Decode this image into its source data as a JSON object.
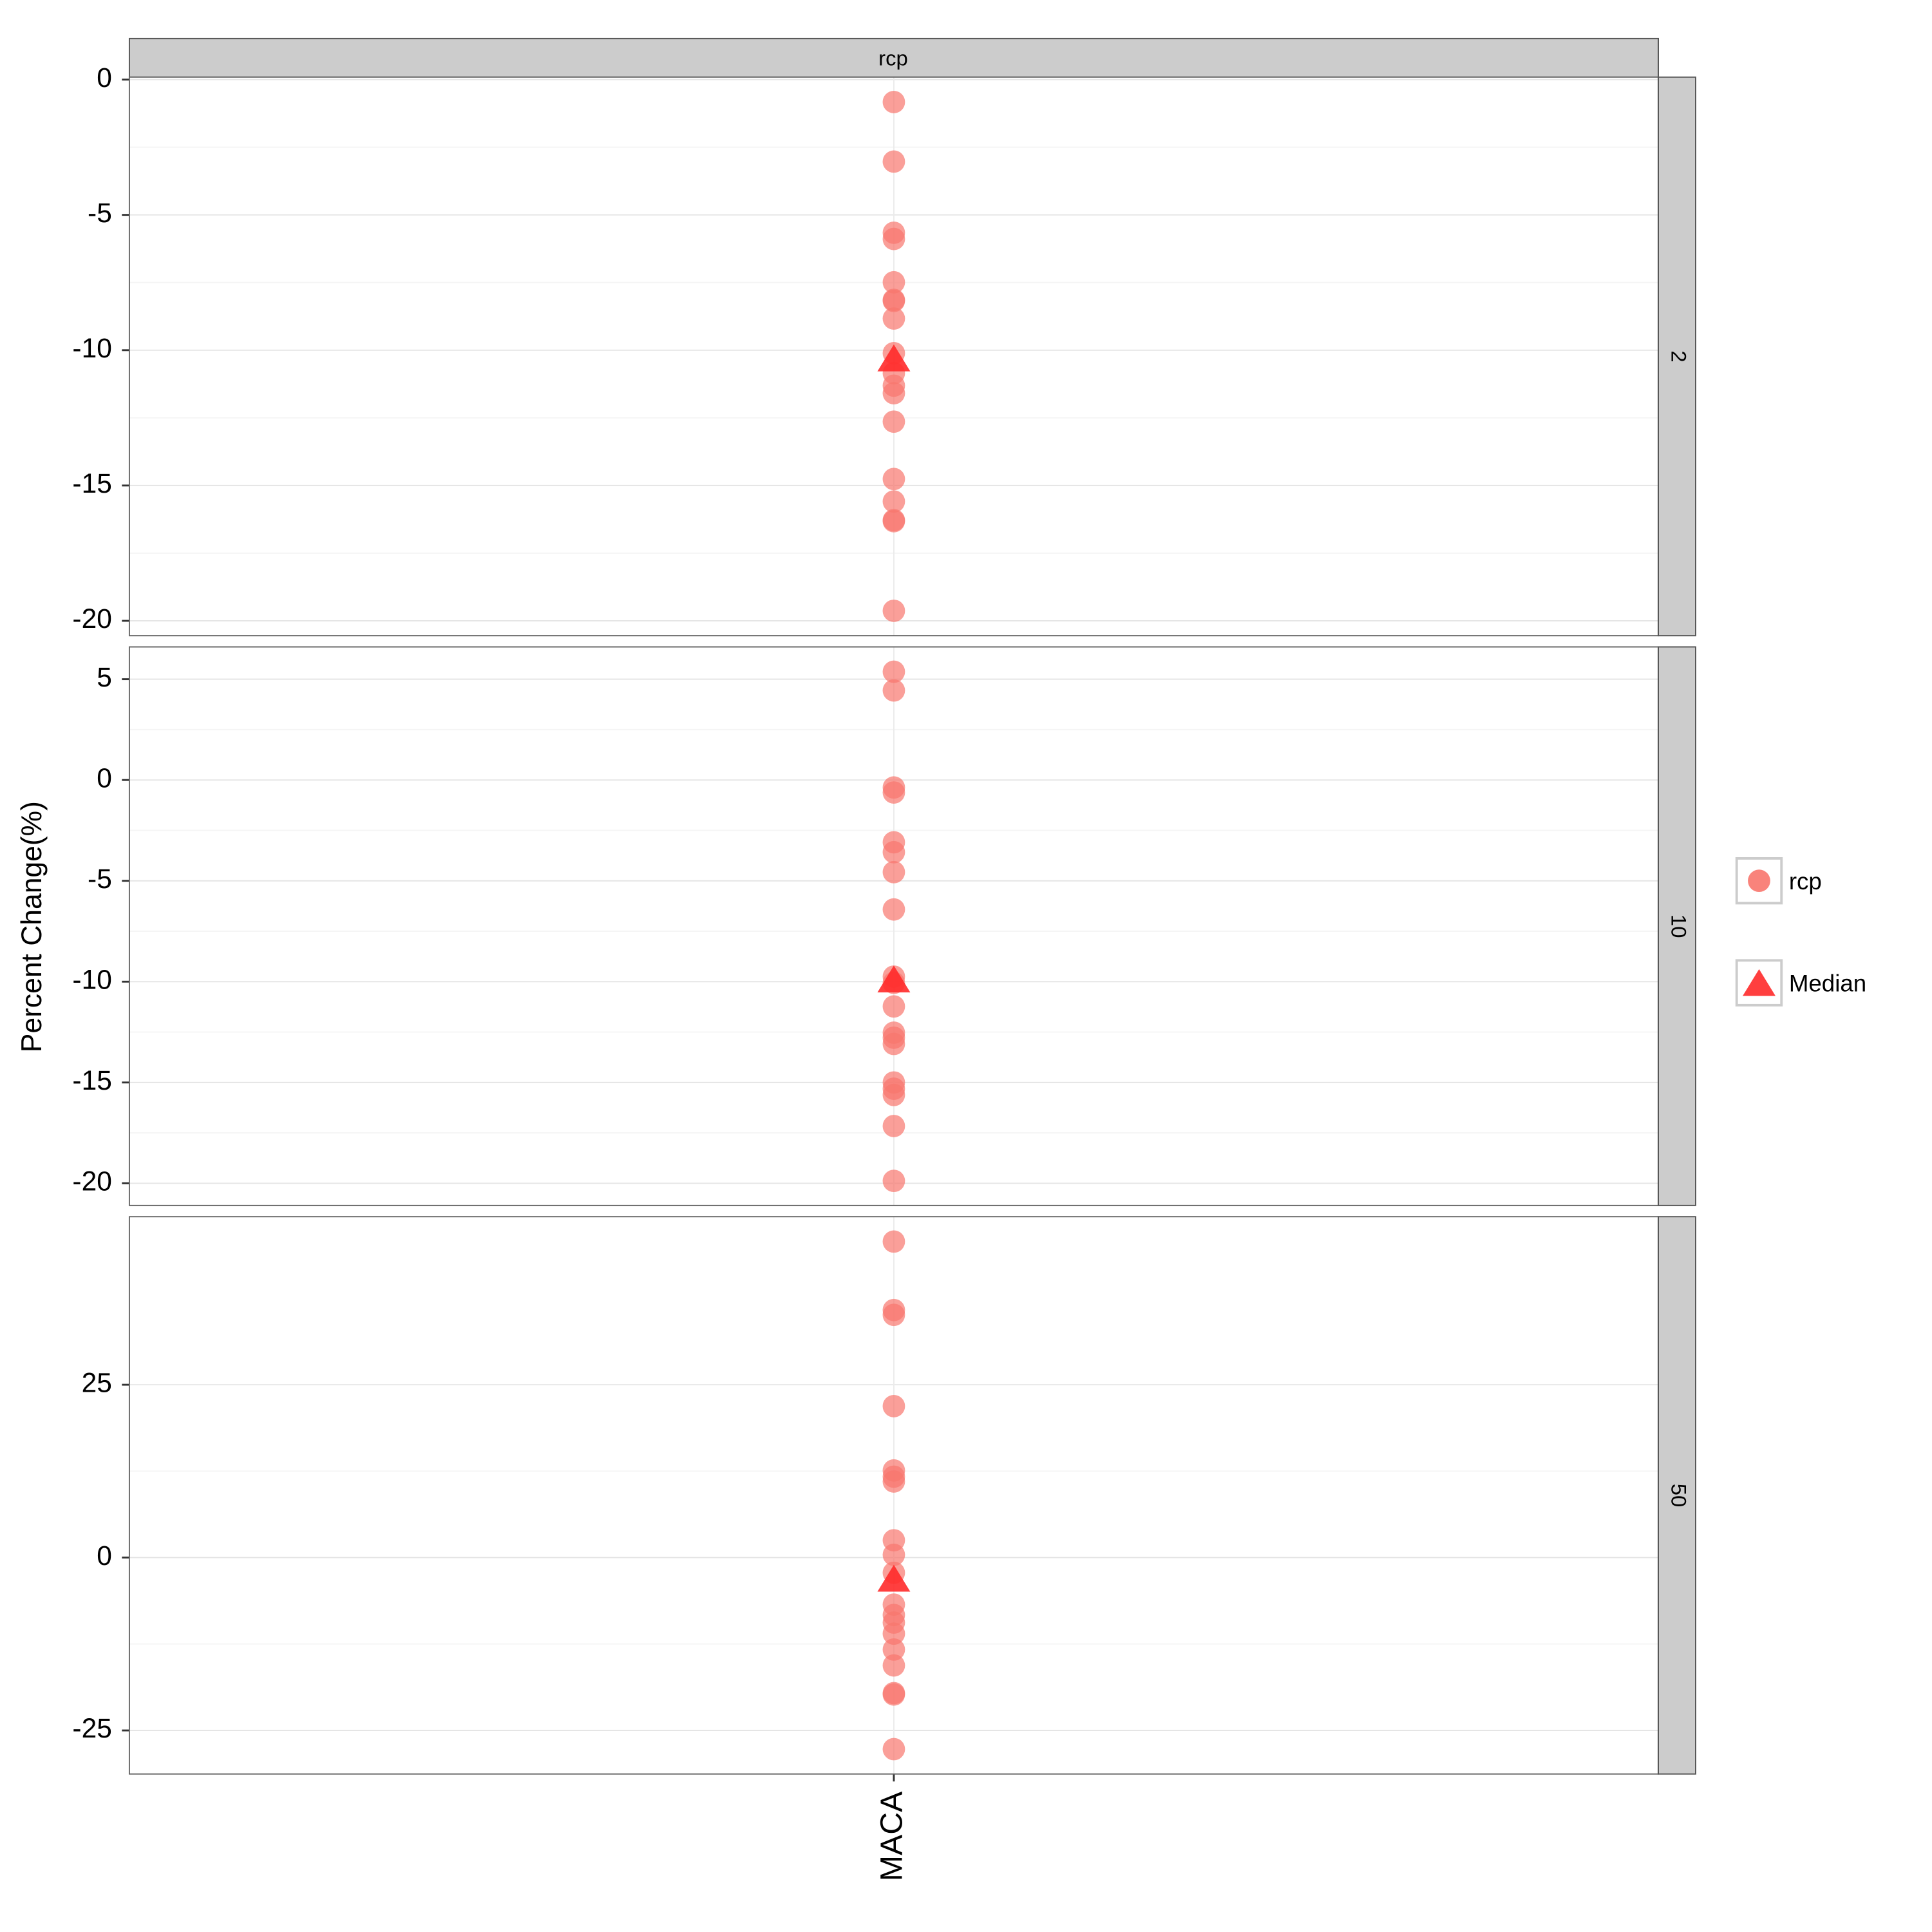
{
  "figure": {
    "strip_label": "rcp",
    "y_label": "Percent Change(%)"
  },
  "chart_data": [
    {
      "type": "scatter",
      "facet_label": "2",
      "categories": [
        "MACA"
      ],
      "series": [
        {
          "name": "rcp",
          "color": "#f8766d",
          "values": [
            -0.83,
            -3.03,
            -5.66,
            -5.89,
            -7.49,
            -8.14,
            -8.18,
            -8.83,
            -10.11,
            -10.85,
            -11.31,
            -11.59,
            -12.64,
            -14.76,
            -15.59,
            -16.28,
            -16.32,
            -19.63
          ]
        },
        {
          "name": "Median",
          "color": "#ff2a2a",
          "values": [
            -10.34
          ]
        }
      ],
      "ylim": [
        -20.55,
        0.09
      ],
      "yticks": [
        -20,
        -15,
        -10,
        -5,
        0
      ],
      "grid": true
    },
    {
      "type": "scatter",
      "facet_label": "10",
      "categories": [
        "MACA"
      ],
      "series": [
        {
          "name": "rcp",
          "color": "#f8766d",
          "values": [
            5.37,
            4.44,
            -0.37,
            -0.62,
            -3.09,
            -3.58,
            -4.57,
            -6.42,
            -9.75,
            -10.06,
            -11.23,
            -12.53,
            -12.78,
            -13.09,
            -15.0,
            -15.31,
            -15.62,
            -17.16,
            -19.88
          ]
        },
        {
          "name": "Median",
          "color": "#ff2a2a",
          "values": [
            -9.94
          ]
        }
      ],
      "ylim": [
        -21.1,
        6.6
      ],
      "yticks": [
        -20,
        -15,
        -10,
        -5,
        0,
        5
      ],
      "grid": true
    },
    {
      "type": "scatter",
      "facet_label": "50",
      "categories": [
        "MACA"
      ],
      "series": [
        {
          "name": "rcp",
          "color": "#f8766d",
          "values": [
            45.7,
            35.8,
            35.1,
            21.9,
            12.6,
            11.7,
            11.0,
            2.5,
            0.4,
            -2.2,
            -6.8,
            -8.3,
            -9.4,
            -11.0,
            -13.3,
            -15.6,
            -19.6,
            -19.8,
            -27.7
          ]
        },
        {
          "name": "Median",
          "color": "#ff2a2a",
          "values": [
            -3.2
          ]
        }
      ],
      "ylim": [
        -31.3,
        49.3
      ],
      "yticks": [
        -25,
        0,
        25
      ],
      "grid": true
    }
  ]
}
